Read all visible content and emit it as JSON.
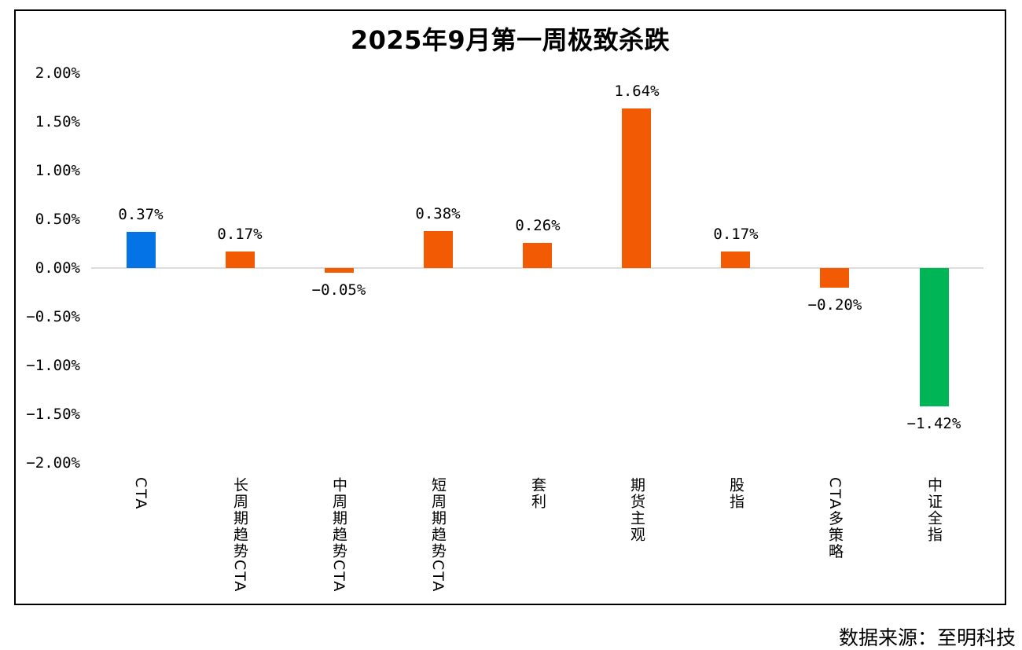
{
  "title": "2025年9月第一周极致杀跌",
  "source_note": "数据来源：至明科技",
  "colors": {
    "cta_bar": "#0473E6",
    "default_bar": "#F25A04",
    "index_bar": "#00B556",
    "zero_line": "#DCDCDC",
    "frame_border": "#000000",
    "text": "#000000",
    "background": "#FFFFFF"
  },
  "chart_data": {
    "type": "bar",
    "title": "2025年9月第一周极致杀跌",
    "categories": [
      "CTA",
      "长周期趋势CTA",
      "中周期趋势CTA",
      "短周期趋势CTA",
      "套利",
      "期货主观",
      "股指",
      "CTA多策略",
      "中证全指"
    ],
    "values": [
      0.37,
      0.17,
      -0.05,
      0.38,
      0.26,
      1.64,
      0.17,
      -0.2,
      -1.42
    ],
    "value_labels": [
      "0.37%",
      "0.17%",
      "−0.05%",
      "0.38%",
      "0.26%",
      "1.64%",
      "0.17%",
      "−0.20%",
      "−1.42%"
    ],
    "bar_colors": [
      "#0473E6",
      "#F25A04",
      "#F25A04",
      "#F25A04",
      "#F25A04",
      "#F25A04",
      "#F25A04",
      "#F25A04",
      "#00B556"
    ],
    "xlabel": "",
    "ylabel": "",
    "ylim": [
      -2.0,
      2.0
    ],
    "ytick_values": [
      2.0,
      1.5,
      1.0,
      0.5,
      0.0,
      -0.5,
      -1.0,
      -1.5,
      -2.0
    ],
    "ytick_labels": [
      "2.00%",
      "1.50%",
      "1.00%",
      "0.50%",
      "0.00%",
      "−0.50%",
      "−1.00%",
      "−1.50%",
      "−2.00%"
    ],
    "grid": "zero-line-only",
    "legend": "none",
    "source": "数据来源：至明科技"
  }
}
